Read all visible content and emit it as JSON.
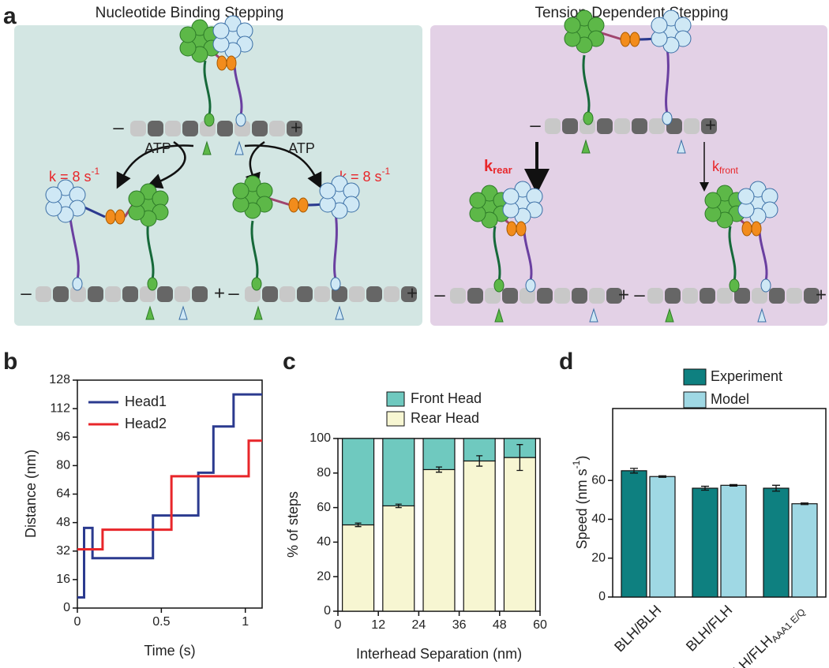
{
  "panel_labels": [
    "a",
    "b",
    "c",
    "d"
  ],
  "diagram": {
    "titles": [
      "Nucleotide Binding Stepping",
      "Tension-Dependent Stepping"
    ],
    "minus": "–",
    "plus": "+",
    "atp": "ATP",
    "rate": {
      "text": "k = 8 s",
      "sup": "-1"
    },
    "k_rear": {
      "text": "k",
      "sub": "rear"
    },
    "k_front": {
      "text": "k",
      "sub": "front"
    }
  },
  "chart_data": [
    {
      "type": "line",
      "x_label": "Time (s)",
      "y_label": "Distance (nm)",
      "xlim": [
        0,
        1.1
      ],
      "xticks": [
        0,
        0.5,
        1
      ],
      "ylim": [
        0,
        128
      ],
      "yticks": [
        0,
        16,
        32,
        48,
        64,
        80,
        96,
        112,
        128
      ],
      "series": [
        {
          "name": "Head1",
          "color": "#2b3a8f",
          "x": [
            0,
            0.04,
            0.04,
            0.09,
            0.09,
            0.45,
            0.45,
            0.72,
            0.72,
            0.81,
            0.81,
            0.93,
            0.93,
            1.1
          ],
          "values": [
            6,
            6,
            45,
            45,
            28,
            28,
            52,
            52,
            76,
            76,
            102,
            102,
            120,
            120
          ]
        },
        {
          "name": "Head2",
          "color": "#e8262a",
          "x": [
            0,
            0.15,
            0.15,
            0.56,
            0.56,
            1.02,
            1.02,
            1.1
          ],
          "values": [
            33,
            33,
            44,
            44,
            74,
            74,
            94,
            94
          ]
        }
      ]
    },
    {
      "type": "bar",
      "stacked": true,
      "x_label": "Interhead Separation (nm)",
      "y_label": "% of steps",
      "x": [
        6,
        18,
        30,
        42,
        54
      ],
      "xlim": [
        0,
        60
      ],
      "xticks": [
        0,
        12,
        24,
        36,
        48,
        60
      ],
      "ylim": [
        0,
        100
      ],
      "yticks": [
        0,
        20,
        40,
        60,
        80,
        100
      ],
      "series": [
        {
          "name": "Rear Head",
          "color": "#f7f6d2",
          "values": [
            50,
            61,
            82,
            87,
            89
          ],
          "errors": [
            1,
            1,
            1.5,
            3,
            7.5
          ]
        },
        {
          "name": "Front Head",
          "color": "#6fc9bf",
          "values": [
            50,
            39,
            18,
            13,
            11
          ]
        }
      ]
    },
    {
      "type": "bar",
      "stacked": false,
      "y_label": {
        "text": "Speed (nm s",
        "sup": "-1",
        "end": ")"
      },
      "categories": [
        "BLH/BLH",
        "BLH/FLH",
        "BLH/FLH"
      ],
      "category_subscripts": [
        null,
        null,
        "AAA1 E/Q"
      ],
      "ylim": [
        0,
        97
      ],
      "yticks": [
        0,
        20,
        40,
        60
      ],
      "series": [
        {
          "name": "Experiment",
          "color": "#0e8080",
          "values": [
            65,
            56,
            56
          ],
          "errors": [
            1.2,
            1,
            1.5
          ]
        },
        {
          "name": "Model",
          "color": "#9fd8e4",
          "values": [
            62,
            57.5,
            48
          ],
          "errors": [
            0.4,
            0.4,
            0.4
          ]
        }
      ]
    }
  ]
}
